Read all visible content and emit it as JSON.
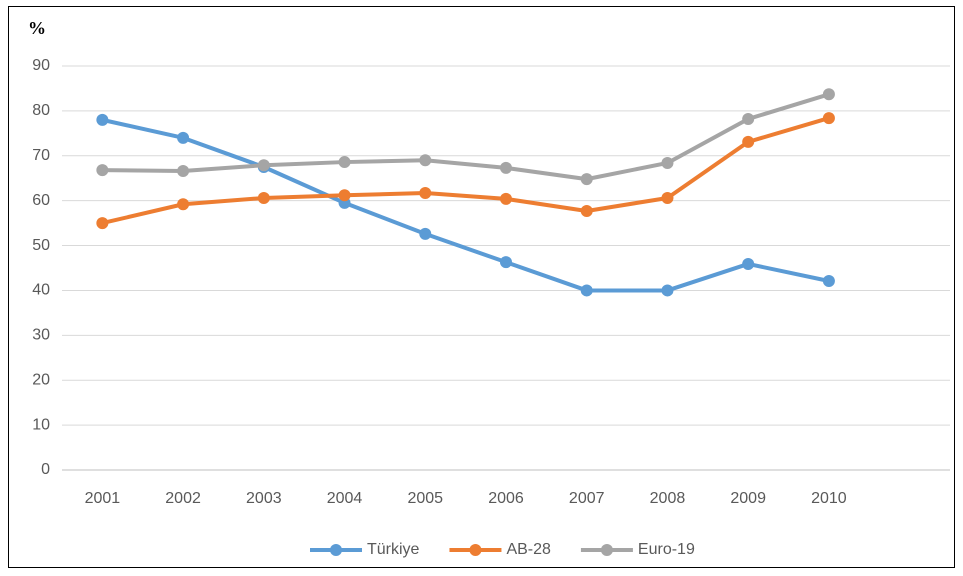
{
  "chart_data": {
    "type": "line",
    "ylabel": "%",
    "categories": [
      "2001",
      "2002",
      "2003",
      "2004",
      "2005",
      "2006",
      "2007",
      "2008",
      "2009",
      "2010",
      null
    ],
    "series": [
      {
        "name": "Türkiye",
        "color": "#5b9bd5",
        "values": [
          78,
          74,
          67.5,
          59.5,
          52.6,
          46.3,
          40,
          40,
          45.9,
          42.1,
          null
        ]
      },
      {
        "name": "AB-28",
        "color": "#ed7d31",
        "values": [
          55,
          59.2,
          60.6,
          61.2,
          61.7,
          60.4,
          57.7,
          60.6,
          73.1,
          78.4,
          null
        ]
      },
      {
        "name": "Euro-19",
        "color": "#a5a5a5",
        "values": [
          66.8,
          66.6,
          67.9,
          68.6,
          69,
          67.3,
          64.8,
          68.4,
          78.2,
          83.7,
          null
        ]
      }
    ],
    "ylim": [
      0,
      90
    ],
    "yticks": [
      0,
      10,
      20,
      30,
      40,
      50,
      60,
      70,
      80,
      90
    ],
    "grid": true,
    "legend": "bottom"
  }
}
